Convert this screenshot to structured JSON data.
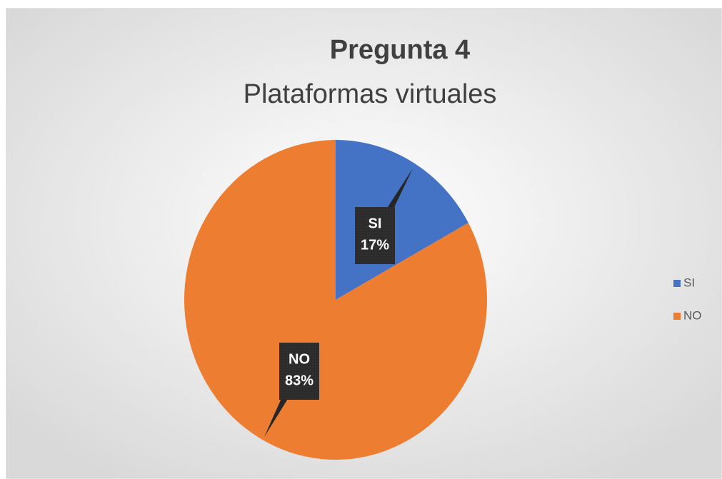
{
  "chart_data": {
    "type": "pie",
    "title": "Pregunta 4",
    "subtitle": "Plataformas virtuales",
    "categories": [
      "SI",
      "NO"
    ],
    "values": [
      17,
      83
    ],
    "value_labels": [
      "17%",
      "83%"
    ],
    "colors": [
      "#4472c4",
      "#ed7d31"
    ],
    "legend": "right"
  }
}
